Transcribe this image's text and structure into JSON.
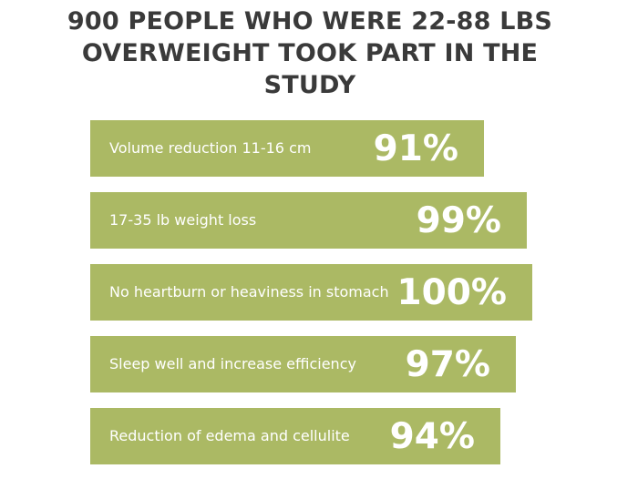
{
  "chart_data": {
    "type": "bar",
    "orientation": "horizontal",
    "title": "900 PEOPLE WHO WERE 22-88 LBS OVERWEIGHT TOOK PART IN THE STUDY",
    "title_lines": [
      "900 PEOPLE WHO WERE 22-88 LBS",
      "OVERWEIGHT TOOK PART IN THE",
      "STUDY"
    ],
    "categories": [
      "Volume reduction 11-16 cm",
      "17-35 lb weight loss",
      "No heartburn or heaviness in stomach",
      "Sleep well and increase efficiency",
      "Reduction of edema and cellulite"
    ],
    "values": [
      91,
      99,
      100,
      97,
      94
    ],
    "value_labels": [
      "91%",
      "99%",
      "100%",
      "97%",
      "94%"
    ],
    "unit": "%",
    "xlabel": "",
    "ylabel": "",
    "grid": false,
    "legend": "none",
    "bar_color": "#abb964",
    "label_color": "#ffffff",
    "title_color": "#3a3a3a"
  }
}
